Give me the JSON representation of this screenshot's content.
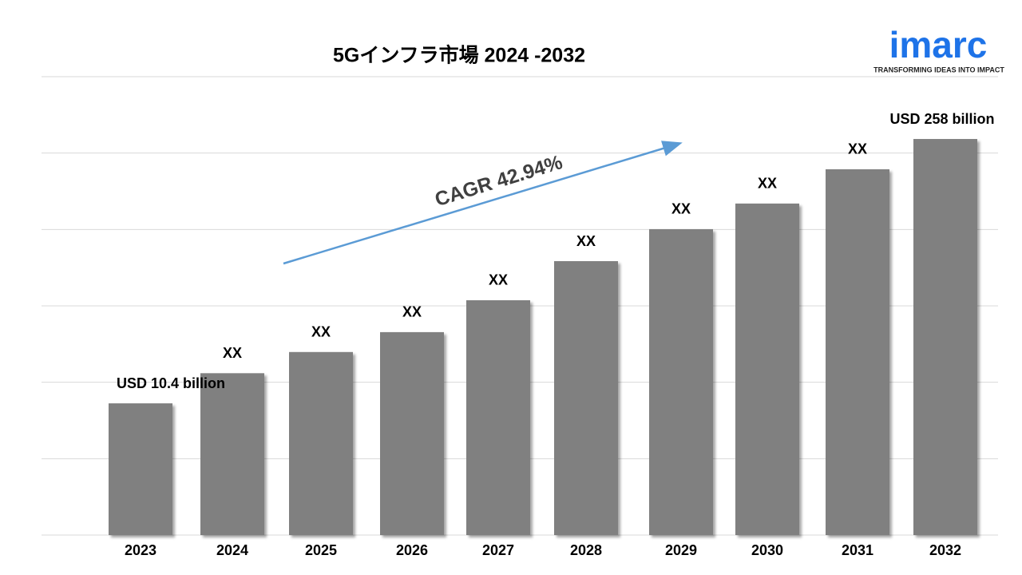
{
  "chart_data": {
    "type": "bar",
    "title": "5Gインフラ市場 2024 -2032",
    "categories": [
      "2023",
      "2024",
      "2025",
      "2026",
      "2027",
      "2028",
      "2029",
      "2030",
      "2031",
      "2032"
    ],
    "values": [
      10.4,
      15.0,
      19.4,
      24.7,
      36.4,
      58.5,
      86.3,
      117.8,
      178.6,
      258
    ],
    "value_labels": [
      "USD 10.4 billion",
      "XX",
      "XX",
      "XX",
      "XX",
      "XX",
      "XX",
      "XX",
      "XX",
      "USD 258 billion"
    ],
    "color": "#808080",
    "ylim": [
      2.1,
      550
    ],
    "log_scale": true,
    "grid": true,
    "annotation": "CAGR  42.94%",
    "annotation_color": "#5b9bd5",
    "logo": {
      "name": "imarc",
      "tagline": "TRANSFORMING IDEAS INTO IMPACT",
      "color": "#1e73e8"
    }
  }
}
